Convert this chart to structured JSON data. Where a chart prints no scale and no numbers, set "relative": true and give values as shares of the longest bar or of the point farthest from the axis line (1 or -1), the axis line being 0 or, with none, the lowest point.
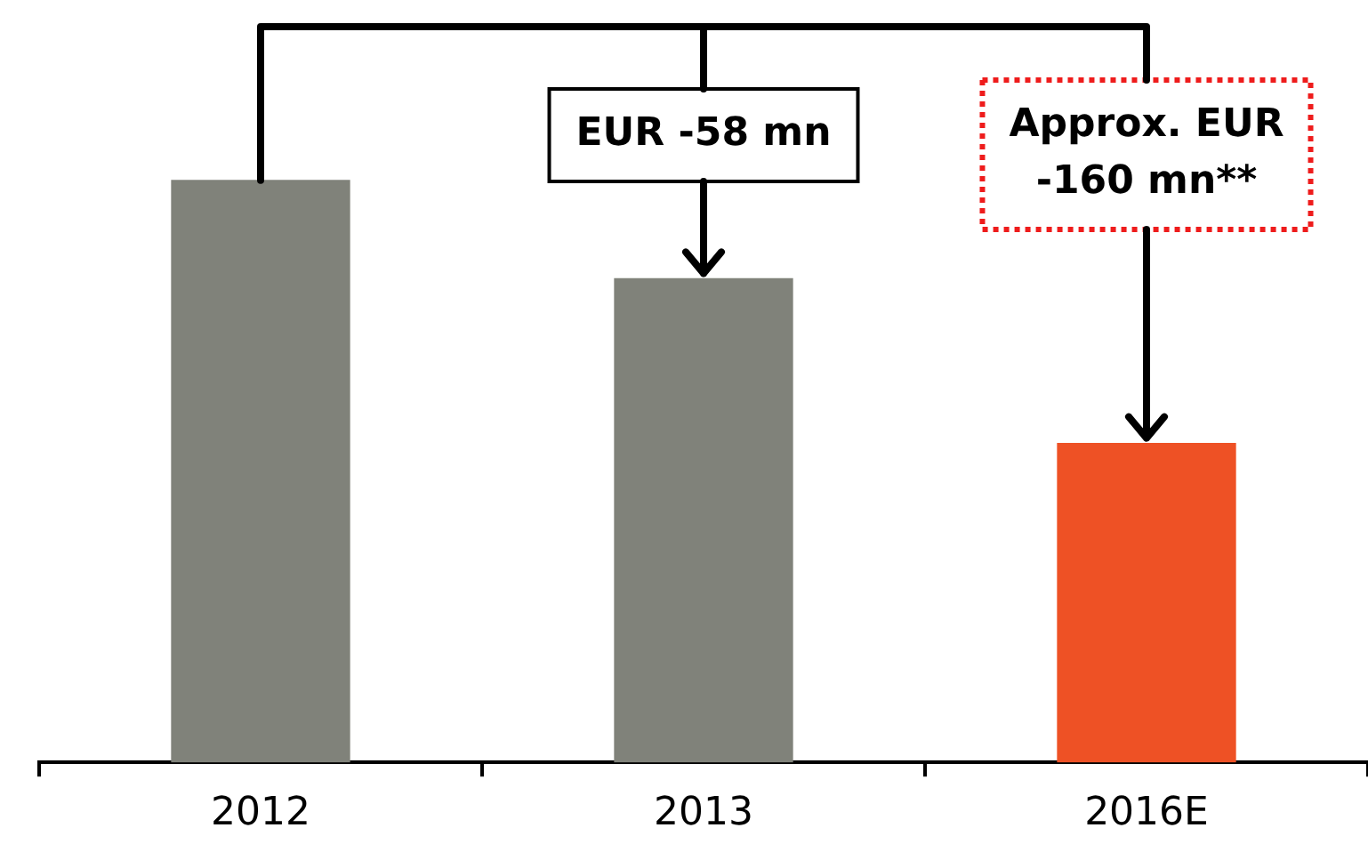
{
  "chart_data": {
    "type": "bar",
    "relative": true,
    "categories": [
      "2012",
      "2013",
      "2016E"
    ],
    "colors": [
      "#80827a",
      "#80827a",
      "#ee5125"
    ],
    "values": [
      1,
      0.831,
      0.548
    ],
    "annotations": [
      {
        "text": "EUR -58 mn",
        "x": "2013",
        "y": 0.831
      },
      {
        "text": "Approx. EUR -160 mn**",
        "x": "2016E",
        "y": 0.548
      }
    ],
    "grid": false,
    "legend": false
  }
}
